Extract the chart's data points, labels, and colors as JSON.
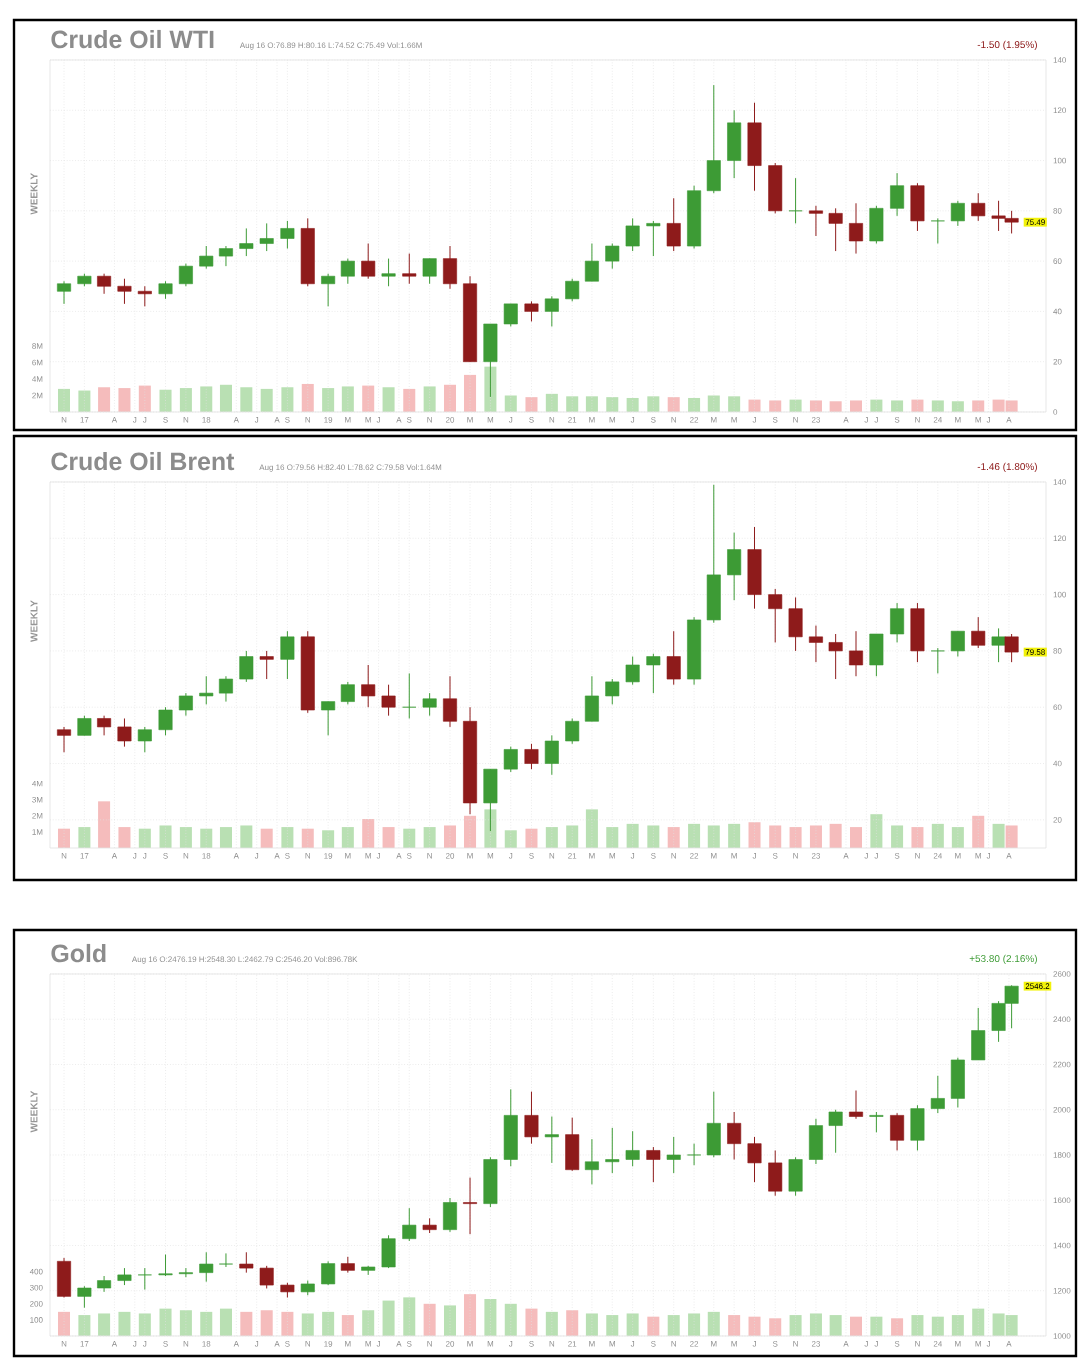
{
  "chart_data": [
    {
      "type": "candlestick",
      "title": "Crude Oil WTI",
      "subtitle": "Aug 16   O:76.89  H:80.16  L:74.52  C:75.49  Vol:1.66M",
      "grid": true,
      "annotations": [
        "WEEKLY",
        "-1.50 (1.95%)",
        {
          "text": "75.49",
          "x": "2024-08-16",
          "y": 75.49
        }
      ],
      "xlim": [
        "2016-09-20",
        "2024-11-20"
      ],
      "ylim": [
        0,
        140
      ],
      "yticks": [
        0,
        20,
        40,
        60,
        80,
        100,
        120,
        140
      ],
      "y2lim": [
        0,
        42.7
      ],
      "y2ticks": [
        {
          "value": 2,
          "label": "2M"
        },
        {
          "value": 4,
          "label": "4M"
        },
        {
          "value": 6,
          "label": "6M"
        },
        {
          "value": 8,
          "label": "8M"
        }
      ],
      "xticks": [
        {
          "value": "2016-11",
          "label": "N"
        },
        {
          "value": "2017-01",
          "label": "17"
        },
        {
          "value": "2017-04",
          "label": "A"
        },
        {
          "value": "2017-06",
          "label": "J"
        },
        {
          "value": "2017-07",
          "label": "J"
        },
        {
          "value": "2017-09",
          "label": "S"
        },
        {
          "value": "2017-11",
          "label": "N"
        },
        {
          "value": "2018-01",
          "label": "18"
        },
        {
          "value": "2018-04",
          "label": "A"
        },
        {
          "value": "2018-06",
          "label": "J"
        },
        {
          "value": "2018-08",
          "label": "A"
        },
        {
          "value": "2018-09",
          "label": "S"
        },
        {
          "value": "2018-11",
          "label": "N"
        },
        {
          "value": "2019-01",
          "label": "19"
        },
        {
          "value": "2019-03",
          "label": "M"
        },
        {
          "value": "2019-05",
          "label": "M"
        },
        {
          "value": "2019-06",
          "label": "J"
        },
        {
          "value": "2019-08",
          "label": "A"
        },
        {
          "value": "2019-09",
          "label": "S"
        },
        {
          "value": "2019-11",
          "label": "N"
        },
        {
          "value": "2020-01",
          "label": "20"
        },
        {
          "value": "2020-03",
          "label": "M"
        },
        {
          "value": "2020-05",
          "label": "M"
        },
        {
          "value": "2020-07",
          "label": "J"
        },
        {
          "value": "2020-09",
          "label": "S"
        },
        {
          "value": "2020-11",
          "label": "N"
        },
        {
          "value": "2021-01",
          "label": "21"
        },
        {
          "value": "2021-03",
          "label": "M"
        },
        {
          "value": "2021-05",
          "label": "M"
        },
        {
          "value": "2021-07",
          "label": "J"
        },
        {
          "value": "2021-09",
          "label": "S"
        },
        {
          "value": "2021-11",
          "label": "N"
        },
        {
          "value": "2022-01",
          "label": "22"
        },
        {
          "value": "2022-03",
          "label": "M"
        },
        {
          "value": "2022-05",
          "label": "M"
        },
        {
          "value": "2022-07",
          "label": "J"
        },
        {
          "value": "2022-09",
          "label": "S"
        },
        {
          "value": "2022-11",
          "label": "N"
        },
        {
          "value": "2023-01",
          "label": "23"
        },
        {
          "value": "2023-04",
          "label": "A"
        },
        {
          "value": "2023-06",
          "label": "J"
        },
        {
          "value": "2023-07",
          "label": "J"
        },
        {
          "value": "2023-09",
          "label": "S"
        },
        {
          "value": "2023-11",
          "label": "N"
        },
        {
          "value": "2024-01",
          "label": "24"
        },
        {
          "value": "2024-03",
          "label": "M"
        },
        {
          "value": "2024-05",
          "label": "M"
        },
        {
          "value": "2024-06",
          "label": "J"
        },
        {
          "value": "2024-08",
          "label": "A"
        }
      ],
      "x": [
        "2016-11",
        "2017-01",
        "2017-03",
        "2017-05",
        "2017-07",
        "2017-09",
        "2017-11",
        "2018-01",
        "2018-03",
        "2018-05",
        "2018-07",
        "2018-09",
        "2018-11",
        "2019-01",
        "2019-03",
        "2019-05",
        "2019-07",
        "2019-09",
        "2019-11",
        "2020-01",
        "2020-03",
        "2020-05",
        "2020-07",
        "2020-09",
        "2020-11",
        "2021-01",
        "2021-03",
        "2021-05",
        "2021-07",
        "2021-09",
        "2021-11",
        "2022-01",
        "2022-03",
        "2022-05",
        "2022-07",
        "2022-09",
        "2022-11",
        "2023-01",
        "2023-03",
        "2023-05",
        "2023-07",
        "2023-09",
        "2023-11",
        "2024-01",
        "2024-03",
        "2024-05",
        "2024-07",
        "2024-08-09"
      ],
      "ohlc": [
        [
          48,
          52,
          43,
          51
        ],
        [
          51,
          55,
          50,
          54
        ],
        [
          54,
          55,
          47,
          50
        ],
        [
          50,
          53,
          43,
          48
        ],
        [
          48,
          50,
          42,
          47
        ],
        [
          47,
          52,
          45,
          51
        ],
        [
          51,
          59,
          50,
          58
        ],
        [
          58,
          66,
          57,
          62
        ],
        [
          62,
          66,
          58,
          65
        ],
        [
          65,
          73,
          62,
          67
        ],
        [
          67,
          75,
          64,
          69
        ],
        [
          69,
          76,
          65,
          73
        ],
        [
          73,
          77,
          50,
          51
        ],
        [
          51,
          55,
          42,
          54
        ],
        [
          54,
          61,
          51,
          60
        ],
        [
          60,
          67,
          53,
          54
        ],
        [
          54,
          61,
          50,
          55
        ],
        [
          55,
          63,
          51,
          54
        ],
        [
          54,
          61,
          51,
          61
        ],
        [
          61,
          66,
          49,
          51
        ],
        [
          51,
          54,
          20,
          20
        ],
        [
          20,
          35,
          6,
          35
        ],
        [
          35,
          43,
          34,
          43
        ],
        [
          43,
          44,
          36,
          40
        ],
        [
          40,
          46,
          34,
          45
        ],
        [
          45,
          53,
          44,
          52
        ],
        [
          52,
          67,
          52,
          60
        ],
        [
          60,
          67,
          57,
          66
        ],
        [
          66,
          77,
          64,
          74
        ],
        [
          74,
          76,
          62,
          75
        ],
        [
          75,
          85,
          64,
          66
        ],
        [
          66,
          90,
          65,
          88
        ],
        [
          88,
          130,
          87,
          100
        ],
        [
          100,
          120,
          93,
          115
        ],
        [
          115,
          123,
          88,
          98
        ],
        [
          98,
          99,
          79,
          80
        ],
        [
          80,
          93,
          75,
          80
        ],
        [
          80,
          82,
          70,
          79
        ],
        [
          79,
          81,
          64,
          75
        ],
        [
          75,
          83,
          63,
          68
        ],
        [
          68,
          82,
          67,
          81
        ],
        [
          81,
          95,
          78,
          90
        ],
        [
          90,
          91,
          72,
          76
        ],
        [
          76,
          77,
          67,
          76
        ],
        [
          76,
          84,
          74,
          83
        ],
        [
          83,
          87,
          76,
          78
        ],
        [
          78,
          84,
          72,
          77
        ],
        [
          77,
          80,
          71,
          75.49
        ]
      ],
      "series": [
        {
          "type": "bar",
          "axis": "y2",
          "values": [
            2.8,
            2.6,
            3.0,
            2.9,
            3.2,
            2.7,
            2.9,
            3.1,
            3.3,
            3.0,
            2.8,
            3.0,
            3.4,
            2.9,
            3.1,
            3.2,
            3.0,
            2.8,
            3.1,
            3.3,
            4.5,
            5.5,
            2.0,
            1.8,
            2.2,
            1.9,
            1.9,
            1.8,
            1.7,
            1.9,
            1.8,
            1.7,
            2.0,
            1.9,
            1.5,
            1.4,
            1.5,
            1.4,
            1.3,
            1.4,
            1.5,
            1.4,
            1.5,
            1.4,
            1.3,
            1.4,
            1.5,
            1.4
          ],
          "colors": [
            "#b9e0b3",
            "#b9e0b3",
            "#f5bcbc",
            "#f5bcbc",
            "#f5bcbc",
            "#b9e0b3",
            "#b9e0b3",
            "#b9e0b3",
            "#b9e0b3",
            "#b9e0b3",
            "#b9e0b3",
            "#b9e0b3",
            "#f5bcbc",
            "#b9e0b3",
            "#b9e0b3",
            "#f5bcbc",
            "#b9e0b3",
            "#f5bcbc",
            "#b9e0b3",
            "#f5bcbc",
            "#f5bcbc",
            "#b9e0b3",
            "#b9e0b3",
            "#f5bcbc",
            "#b9e0b3",
            "#b9e0b3",
            "#b9e0b3",
            "#b9e0b3",
            "#b9e0b3",
            "#b9e0b3",
            "#f5bcbc",
            "#b9e0b3",
            "#b9e0b3",
            "#b9e0b3",
            "#f5bcbc",
            "#f5bcbc",
            "#b9e0b3",
            "#f5bcbc",
            "#f5bcbc",
            "#f5bcbc",
            "#b9e0b3",
            "#b9e0b3",
            "#f5bcbc",
            "#b9e0b3",
            "#b9e0b3",
            "#f5bcbc",
            "#f5bcbc",
            "#f5bcbc"
          ]
        }
      ]
    },
    {
      "type": "candlestick",
      "title": "Crude Oil Brent",
      "subtitle": "Aug 16   O:79.56  H:82.40  L:78.62  C:79.58  Vol:1.64M",
      "grid": true,
      "annotations": [
        "WEEKLY",
        "-1.46 (1.80%)",
        {
          "text": "79.58",
          "x": "2024-08-16",
          "y": 79.58
        }
      ],
      "xlim": [
        "2016-09-20",
        "2024-11-20"
      ],
      "ylim": [
        10,
        140
      ],
      "yticks": [
        20,
        40,
        60,
        80,
        100,
        120,
        140
      ],
      "y2lim": [
        0,
        22.75
      ],
      "y2ticks": [
        {
          "value": 1,
          "label": "1M"
        },
        {
          "value": 2,
          "label": "2M"
        },
        {
          "value": 3,
          "label": "3M"
        },
        {
          "value": 4,
          "label": "4M"
        }
      ],
      "xticks": [
        {
          "value": "2016-11",
          "label": "N"
        },
        {
          "value": "2017-01",
          "label": "17"
        },
        {
          "value": "2017-04",
          "label": "A"
        },
        {
          "value": "2017-06",
          "label": "J"
        },
        {
          "value": "2017-07",
          "label": "J"
        },
        {
          "value": "2017-09",
          "label": "S"
        },
        {
          "value": "2017-11",
          "label": "N"
        },
        {
          "value": "2018-01",
          "label": "18"
        },
        {
          "value": "2018-04",
          "label": "A"
        },
        {
          "value": "2018-06",
          "label": "J"
        },
        {
          "value": "2018-08",
          "label": "A"
        },
        {
          "value": "2018-09",
          "label": "S"
        },
        {
          "value": "2018-11",
          "label": "N"
        },
        {
          "value": "2019-01",
          "label": "19"
        },
        {
          "value": "2019-03",
          "label": "M"
        },
        {
          "value": "2019-05",
          "label": "M"
        },
        {
          "value": "2019-06",
          "label": "J"
        },
        {
          "value": "2019-08",
          "label": "A"
        },
        {
          "value": "2019-09",
          "label": "S"
        },
        {
          "value": "2019-11",
          "label": "N"
        },
        {
          "value": "2020-01",
          "label": "20"
        },
        {
          "value": "2020-03",
          "label": "M"
        },
        {
          "value": "2020-05",
          "label": "M"
        },
        {
          "value": "2020-07",
          "label": "J"
        },
        {
          "value": "2020-09",
          "label": "S"
        },
        {
          "value": "2020-11",
          "label": "N"
        },
        {
          "value": "2021-01",
          "label": "21"
        },
        {
          "value": "2021-03",
          "label": "M"
        },
        {
          "value": "2021-05",
          "label": "M"
        },
        {
          "value": "2021-07",
          "label": "J"
        },
        {
          "value": "2021-09",
          "label": "S"
        },
        {
          "value": "2021-11",
          "label": "N"
        },
        {
          "value": "2022-01",
          "label": "22"
        },
        {
          "value": "2022-03",
          "label": "M"
        },
        {
          "value": "2022-05",
          "label": "M"
        },
        {
          "value": "2022-07",
          "label": "J"
        },
        {
          "value": "2022-09",
          "label": "S"
        },
        {
          "value": "2022-11",
          "label": "N"
        },
        {
          "value": "2023-01",
          "label": "23"
        },
        {
          "value": "2023-04",
          "label": "A"
        },
        {
          "value": "2023-06",
          "label": "J"
        },
        {
          "value": "2023-07",
          "label": "J"
        },
        {
          "value": "2023-09",
          "label": "S"
        },
        {
          "value": "2023-11",
          "label": "N"
        },
        {
          "value": "2024-01",
          "label": "24"
        },
        {
          "value": "2024-03",
          "label": "M"
        },
        {
          "value": "2024-05",
          "label": "M"
        },
        {
          "value": "2024-06",
          "label": "J"
        },
        {
          "value": "2024-08",
          "label": "A"
        }
      ],
      "x": [
        "2016-11",
        "2017-01",
        "2017-03",
        "2017-05",
        "2017-07",
        "2017-09",
        "2017-11",
        "2018-01",
        "2018-03",
        "2018-05",
        "2018-07",
        "2018-09",
        "2018-11",
        "2019-01",
        "2019-03",
        "2019-05",
        "2019-07",
        "2019-09",
        "2019-11",
        "2020-01",
        "2020-03",
        "2020-05",
        "2020-07",
        "2020-09",
        "2020-11",
        "2021-01",
        "2021-03",
        "2021-05",
        "2021-07",
        "2021-09",
        "2021-11",
        "2022-01",
        "2022-03",
        "2022-05",
        "2022-07",
        "2022-09",
        "2022-11",
        "2023-01",
        "2023-03",
        "2023-05",
        "2023-07",
        "2023-09",
        "2023-11",
        "2024-01",
        "2024-03",
        "2024-05",
        "2024-07",
        "2024-08-09"
      ],
      "ohlc": [
        [
          52,
          53,
          44,
          50
        ],
        [
          50,
          57,
          50,
          56
        ],
        [
          56,
          57,
          50,
          53
        ],
        [
          53,
          56,
          46,
          48
        ],
        [
          48,
          53,
          44,
          52
        ],
        [
          52,
          60,
          50,
          59
        ],
        [
          59,
          65,
          57,
          64
        ],
        [
          64,
          71,
          61,
          65
        ],
        [
          65,
          71,
          62,
          70
        ],
        [
          70,
          80,
          69,
          78
        ],
        [
          78,
          80,
          70,
          77
        ],
        [
          77,
          87,
          70,
          85
        ],
        [
          85,
          87,
          58,
          59
        ],
        [
          59,
          62,
          50,
          62
        ],
        [
          62,
          69,
          61,
          68
        ],
        [
          68,
          75,
          60,
          64
        ],
        [
          64,
          68,
          57,
          60
        ],
        [
          60,
          72,
          56,
          60
        ],
        [
          60,
          65,
          57,
          63
        ],
        [
          63,
          71,
          53,
          55
        ],
        [
          55,
          60,
          22,
          26
        ],
        [
          26,
          38,
          16,
          38
        ],
        [
          38,
          46,
          37,
          45
        ],
        [
          45,
          47,
          38,
          40
        ],
        [
          40,
          50,
          36,
          48
        ],
        [
          48,
          56,
          47,
          55
        ],
        [
          55,
          71,
          55,
          64
        ],
        [
          64,
          70,
          61,
          69
        ],
        [
          69,
          78,
          68,
          75
        ],
        [
          75,
          79,
          65,
          78
        ],
        [
          78,
          87,
          68,
          70
        ],
        [
          70,
          92,
          68,
          91
        ],
        [
          91,
          139,
          90,
          107
        ],
        [
          107,
          122,
          98,
          116
        ],
        [
          116,
          124,
          95,
          100
        ],
        [
          100,
          102,
          83,
          95
        ],
        [
          95,
          99,
          80,
          85
        ],
        [
          85,
          89,
          76,
          83
        ],
        [
          83,
          86,
          70,
          80
        ],
        [
          80,
          87,
          71,
          75
        ],
        [
          75,
          86,
          71,
          86
        ],
        [
          86,
          97,
          83,
          95
        ],
        [
          95,
          97,
          76,
          80
        ],
        [
          80,
          81,
          72,
          80
        ],
        [
          80,
          87,
          78,
          87
        ],
        [
          87,
          92,
          81,
          82
        ],
        [
          82,
          88,
          76,
          85
        ],
        [
          85,
          86,
          76,
          79.58
        ]
      ],
      "series": [
        {
          "type": "bar",
          "axis": "y2",
          "values": [
            1.2,
            1.3,
            2.9,
            1.3,
            1.2,
            1.4,
            1.3,
            1.2,
            1.3,
            1.4,
            1.2,
            1.3,
            1.2,
            1.1,
            1.3,
            1.8,
            1.3,
            1.2,
            1.3,
            1.4,
            2.0,
            2.4,
            1.1,
            1.2,
            1.3,
            1.4,
            2.4,
            1.3,
            1.5,
            1.4,
            1.3,
            1.5,
            1.4,
            1.5,
            1.6,
            1.4,
            1.3,
            1.4,
            1.5,
            1.3,
            2.1,
            1.4,
            1.3,
            1.5,
            1.3,
            2.0,
            1.5,
            1.4
          ],
          "colors": [
            "#f5bcbc",
            "#b9e0b3",
            "#f5bcbc",
            "#f5bcbc",
            "#b9e0b3",
            "#b9e0b3",
            "#b9e0b3",
            "#b9e0b3",
            "#b9e0b3",
            "#b9e0b3",
            "#f5bcbc",
            "#b9e0b3",
            "#f5bcbc",
            "#b9e0b3",
            "#b9e0b3",
            "#f5bcbc",
            "#f5bcbc",
            "#b9e0b3",
            "#b9e0b3",
            "#f5bcbc",
            "#f5bcbc",
            "#b9e0b3",
            "#b9e0b3",
            "#f5bcbc",
            "#b9e0b3",
            "#b9e0b3",
            "#b9e0b3",
            "#b9e0b3",
            "#b9e0b3",
            "#b9e0b3",
            "#f5bcbc",
            "#b9e0b3",
            "#b9e0b3",
            "#b9e0b3",
            "#f5bcbc",
            "#f5bcbc",
            "#f5bcbc",
            "#f5bcbc",
            "#f5bcbc",
            "#f5bcbc",
            "#b9e0b3",
            "#b9e0b3",
            "#f5bcbc",
            "#b9e0b3",
            "#b9e0b3",
            "#f5bcbc",
            "#b9e0b3",
            "#f5bcbc"
          ]
        }
      ]
    },
    {
      "type": "candlestick",
      "title": "Gold",
      "subtitle": "Aug 16   O:2476.19  H:2548.30  L:2462.79  C:2546.20  Vol:896.78K",
      "grid": true,
      "annotations": [
        "WEEKLY",
        "+53.80 (2.16%)",
        {
          "text": "2546.2",
          "x": "2024-08-16",
          "y": 2546.2
        }
      ],
      "xlim": [
        "2016-09-20",
        "2024-11-20"
      ],
      "ylim": [
        1000,
        2600
      ],
      "yticks": [
        1000,
        1200,
        1400,
        1600,
        1800,
        2000,
        2200,
        2400,
        2600
      ],
      "y2lim": [
        0,
        2250
      ],
      "y2ticks": [
        100,
        200,
        300,
        400
      ],
      "xticks": [
        {
          "value": "2016-11",
          "label": "N"
        },
        {
          "value": "2017-01",
          "label": "17"
        },
        {
          "value": "2017-04",
          "label": "A"
        },
        {
          "value": "2017-06",
          "label": "J"
        },
        {
          "value": "2017-07",
          "label": "J"
        },
        {
          "value": "2017-09",
          "label": "S"
        },
        {
          "value": "2017-11",
          "label": "N"
        },
        {
          "value": "2018-01",
          "label": "18"
        },
        {
          "value": "2018-04",
          "label": "A"
        },
        {
          "value": "2018-06",
          "label": "J"
        },
        {
          "value": "2018-08",
          "label": "A"
        },
        {
          "value": "2018-09",
          "label": "S"
        },
        {
          "value": "2018-11",
          "label": "N"
        },
        {
          "value": "2019-01",
          "label": "19"
        },
        {
          "value": "2019-03",
          "label": "M"
        },
        {
          "value": "2019-05",
          "label": "M"
        },
        {
          "value": "2019-06",
          "label": "J"
        },
        {
          "value": "2019-08",
          "label": "A"
        },
        {
          "value": "2019-09",
          "label": "S"
        },
        {
          "value": "2019-11",
          "label": "N"
        },
        {
          "value": "2020-01",
          "label": "20"
        },
        {
          "value": "2020-03",
          "label": "M"
        },
        {
          "value": "2020-05",
          "label": "M"
        },
        {
          "value": "2020-07",
          "label": "J"
        },
        {
          "value": "2020-09",
          "label": "S"
        },
        {
          "value": "2020-11",
          "label": "N"
        },
        {
          "value": "2021-01",
          "label": "21"
        },
        {
          "value": "2021-03",
          "label": "M"
        },
        {
          "value": "2021-05",
          "label": "M"
        },
        {
          "value": "2021-07",
          "label": "J"
        },
        {
          "value": "2021-09",
          "label": "S"
        },
        {
          "value": "2021-11",
          "label": "N"
        },
        {
          "value": "2022-01",
          "label": "22"
        },
        {
          "value": "2022-03",
          "label": "M"
        },
        {
          "value": "2022-05",
          "label": "M"
        },
        {
          "value": "2022-07",
          "label": "J"
        },
        {
          "value": "2022-09",
          "label": "S"
        },
        {
          "value": "2022-11",
          "label": "N"
        },
        {
          "value": "2023-01",
          "label": "23"
        },
        {
          "value": "2023-04",
          "label": "A"
        },
        {
          "value": "2023-06",
          "label": "J"
        },
        {
          "value": "2023-07",
          "label": "J"
        },
        {
          "value": "2023-09",
          "label": "S"
        },
        {
          "value": "2023-11",
          "label": "N"
        },
        {
          "value": "2024-01",
          "label": "24"
        },
        {
          "value": "2024-03",
          "label": "M"
        },
        {
          "value": "2024-05",
          "label": "M"
        },
        {
          "value": "2024-06",
          "label": "J"
        },
        {
          "value": "2024-08",
          "label": "A"
        }
      ],
      "x": [
        "2016-11",
        "2017-01",
        "2017-03",
        "2017-05",
        "2017-07",
        "2017-09",
        "2017-11",
        "2018-01",
        "2018-03",
        "2018-05",
        "2018-07",
        "2018-09",
        "2018-11",
        "2019-01",
        "2019-03",
        "2019-05",
        "2019-07",
        "2019-09",
        "2019-11",
        "2020-01",
        "2020-03",
        "2020-05",
        "2020-07",
        "2020-09",
        "2020-11",
        "2021-01",
        "2021-03",
        "2021-05",
        "2021-07",
        "2021-09",
        "2021-11",
        "2022-01",
        "2022-03",
        "2022-05",
        "2022-07",
        "2022-09",
        "2022-11",
        "2023-01",
        "2023-03",
        "2023-05",
        "2023-07",
        "2023-09",
        "2023-11",
        "2024-01",
        "2024-03",
        "2024-05",
        "2024-07",
        "2024-08-09"
      ],
      "ohlc": [
        [
          1330,
          1345,
          1170,
          1175
        ],
        [
          1175,
          1220,
          1125,
          1212
        ],
        [
          1212,
          1265,
          1195,
          1245
        ],
        [
          1245,
          1300,
          1225,
          1270
        ],
        [
          1270,
          1300,
          1205,
          1270
        ],
        [
          1270,
          1360,
          1265,
          1275
        ],
        [
          1275,
          1300,
          1260,
          1280
        ],
        [
          1280,
          1370,
          1240,
          1318
        ],
        [
          1318,
          1365,
          1305,
          1318
        ],
        [
          1318,
          1370,
          1280,
          1300
        ],
        [
          1300,
          1310,
          1210,
          1225
        ],
        [
          1225,
          1235,
          1170,
          1195
        ],
        [
          1195,
          1245,
          1180,
          1230
        ],
        [
          1230,
          1330,
          1225,
          1320
        ],
        [
          1320,
          1350,
          1280,
          1290
        ],
        [
          1290,
          1310,
          1270,
          1305
        ],
        [
          1305,
          1445,
          1300,
          1430
        ],
        [
          1430,
          1565,
          1420,
          1490
        ],
        [
          1490,
          1520,
          1455,
          1470
        ],
        [
          1470,
          1610,
          1460,
          1590
        ],
        [
          1590,
          1700,
          1450,
          1585
        ],
        [
          1585,
          1790,
          1570,
          1780
        ],
        [
          1780,
          2090,
          1750,
          1975
        ],
        [
          1975,
          2080,
          1850,
          1880
        ],
        [
          1880,
          1970,
          1765,
          1890
        ],
        [
          1890,
          1965,
          1730,
          1735
        ],
        [
          1735,
          1870,
          1670,
          1770
        ],
        [
          1770,
          1920,
          1720,
          1780
        ],
        [
          1780,
          1905,
          1750,
          1820
        ],
        [
          1820,
          1835,
          1680,
          1780
        ],
        [
          1780,
          1880,
          1720,
          1800
        ],
        [
          1800,
          1850,
          1755,
          1800
        ],
        [
          1800,
          2080,
          1790,
          1940
        ],
        [
          1940,
          1990,
          1780,
          1850
        ],
        [
          1850,
          1880,
          1680,
          1765
        ],
        [
          1765,
          1820,
          1620,
          1640
        ],
        [
          1640,
          1790,
          1620,
          1780
        ],
        [
          1780,
          1960,
          1760,
          1930
        ],
        [
          1930,
          2000,
          1810,
          1990
        ],
        [
          1990,
          2085,
          1960,
          1970
        ],
        [
          1970,
          1990,
          1900,
          1975
        ],
        [
          1975,
          1985,
          1820,
          1865
        ],
        [
          1865,
          2020,
          1820,
          2005
        ],
        [
          2005,
          2150,
          1985,
          2050
        ],
        [
          2050,
          2230,
          2010,
          2220
        ],
        [
          2220,
          2450,
          2220,
          2350
        ],
        [
          2350,
          2480,
          2300,
          2470
        ],
        [
          2470,
          2550,
          2360,
          2546.2
        ]
      ],
      "series": [
        {
          "type": "bar",
          "axis": "y2",
          "values": [
            150,
            130,
            140,
            150,
            140,
            170,
            160,
            150,
            170,
            150,
            160,
            150,
            140,
            150,
            130,
            160,
            220,
            240,
            200,
            190,
            260,
            230,
            200,
            170,
            150,
            160,
            140,
            130,
            140,
            120,
            130,
            140,
            150,
            130,
            120,
            110,
            130,
            140,
            130,
            120,
            120,
            110,
            130,
            120,
            130,
            170,
            140,
            130
          ],
          "colors": [
            "#f5bcbc",
            "#b9e0b3",
            "#b9e0b3",
            "#b9e0b3",
            "#b9e0b3",
            "#b9e0b3",
            "#b9e0b3",
            "#b9e0b3",
            "#b9e0b3",
            "#f5bcbc",
            "#f5bcbc",
            "#f5bcbc",
            "#b9e0b3",
            "#b9e0b3",
            "#f5bcbc",
            "#b9e0b3",
            "#b9e0b3",
            "#b9e0b3",
            "#f5bcbc",
            "#b9e0b3",
            "#f5bcbc",
            "#b9e0b3",
            "#b9e0b3",
            "#f5bcbc",
            "#b9e0b3",
            "#f5bcbc",
            "#b9e0b3",
            "#b9e0b3",
            "#b9e0b3",
            "#f5bcbc",
            "#b9e0b3",
            "#b9e0b3",
            "#b9e0b3",
            "#f5bcbc",
            "#f5bcbc",
            "#f5bcbc",
            "#b9e0b3",
            "#b9e0b3",
            "#b9e0b3",
            "#f5bcbc",
            "#b9e0b3",
            "#f5bcbc",
            "#b9e0b3",
            "#b9e0b3",
            "#b9e0b3",
            "#b9e0b3",
            "#b9e0b3",
            "#b9e0b3"
          ]
        }
      ]
    }
  ]
}
